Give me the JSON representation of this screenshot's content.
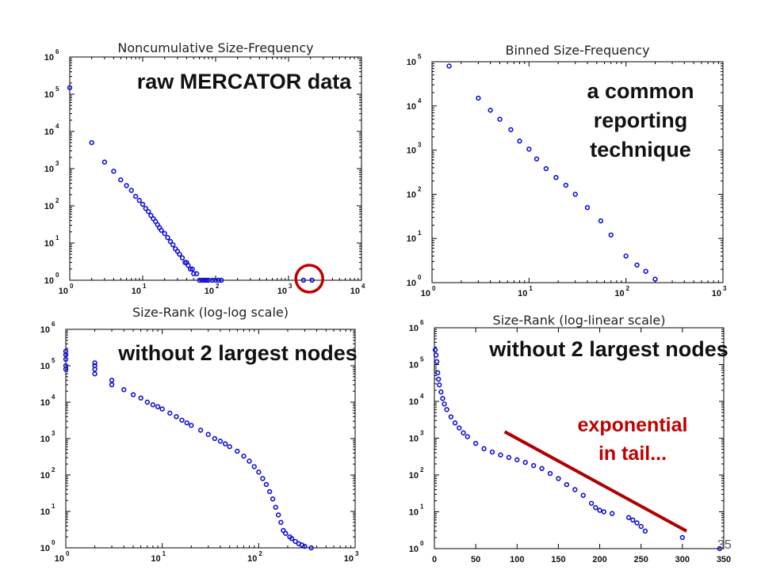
{
  "slide_number": "35",
  "colors": {
    "marker": "#1010d8",
    "trend_line": "#b00000",
    "highlight_circle": "#c00000",
    "annotation_red": "#c00000"
  },
  "chart_data": [
    {
      "id": "p1",
      "type": "scatter",
      "title": "Noncumulative Size-Frequency",
      "xscale": "log",
      "yscale": "log",
      "xlim": [
        1,
        10000
      ],
      "ylim": [
        1,
        1000000
      ],
      "xtick_exponents": [
        0,
        1,
        2,
        3,
        4
      ],
      "ytick_exponents": [
        0,
        1,
        2,
        3,
        4,
        5,
        6
      ],
      "annotation": "raw MERCATOR data",
      "highlight": "circle around the two isolated points near x = 2000",
      "points": [
        [
          1,
          150000
        ],
        [
          2,
          5000
        ],
        [
          3,
          1500
        ],
        [
          4,
          850
        ],
        [
          5,
          500
        ],
        [
          6,
          350
        ],
        [
          7,
          260
        ],
        [
          8,
          180
        ],
        [
          9,
          140
        ],
        [
          10,
          110
        ],
        [
          11,
          85
        ],
        [
          12,
          70
        ],
        [
          13,
          55
        ],
        [
          14,
          45
        ],
        [
          15,
          38
        ],
        [
          16,
          31
        ],
        [
          17,
          26
        ],
        [
          18,
          22
        ],
        [
          20,
          18
        ],
        [
          22,
          14
        ],
        [
          24,
          11
        ],
        [
          26,
          9
        ],
        [
          28,
          7
        ],
        [
          30,
          6
        ],
        [
          32,
          5
        ],
        [
          35,
          4
        ],
        [
          38,
          3
        ],
        [
          40,
          3
        ],
        [
          42,
          2.5
        ],
        [
          45,
          2
        ],
        [
          48,
          2
        ],
        [
          50,
          1.5
        ],
        [
          55,
          1.5
        ],
        [
          60,
          1
        ],
        [
          65,
          1
        ],
        [
          70,
          1
        ],
        [
          75,
          1
        ],
        [
          80,
          1
        ],
        [
          90,
          1
        ],
        [
          100,
          1
        ],
        [
          110,
          1
        ],
        [
          120,
          1
        ],
        [
          1600,
          1
        ],
        [
          2100,
          1
        ]
      ]
    },
    {
      "id": "p2",
      "type": "scatter",
      "title": "Binned Size-Frequency",
      "xscale": "log",
      "yscale": "log",
      "xlim": [
        1,
        1000
      ],
      "ylim": [
        1,
        100000
      ],
      "xtick_exponents": [
        0,
        1,
        2,
        3
      ],
      "ytick_exponents": [
        0,
        1,
        2,
        3,
        4,
        5
      ],
      "annotation": [
        "a common",
        "reporting",
        "technique"
      ],
      "points": [
        [
          1.5,
          80000
        ],
        [
          3,
          15000
        ],
        [
          4,
          8000
        ],
        [
          5,
          5000
        ],
        [
          6.5,
          2900
        ],
        [
          8,
          1600
        ],
        [
          10,
          1050
        ],
        [
          12,
          630
        ],
        [
          15,
          380
        ],
        [
          19,
          240
        ],
        [
          24,
          160
        ],
        [
          30,
          100
        ],
        [
          40,
          50
        ],
        [
          55,
          25
        ],
        [
          70,
          12
        ],
        [
          100,
          4
        ],
        [
          130,
          2.5
        ],
        [
          160,
          1.8
        ],
        [
          200,
          1.2
        ]
      ]
    },
    {
      "id": "p3",
      "type": "scatter",
      "title": "Size-Rank (log-log scale)",
      "xscale": "log",
      "yscale": "log",
      "xlim": [
        1,
        1000
      ],
      "ylim": [
        1,
        1000000
      ],
      "xtick_exponents": [
        0,
        1,
        2,
        3
      ],
      "ytick_exponents": [
        0,
        1,
        2,
        3,
        4,
        5,
        6
      ],
      "annotation": "without 2 largest nodes",
      "points": [
        [
          1,
          250000
        ],
        [
          1,
          200000
        ],
        [
          1,
          150000
        ],
        [
          1,
          100000
        ],
        [
          1,
          80000
        ],
        [
          2,
          120000
        ],
        [
          2,
          100000
        ],
        [
          2,
          80000
        ],
        [
          2,
          60000
        ],
        [
          3,
          40000
        ],
        [
          3,
          30000
        ],
        [
          4,
          22000
        ],
        [
          5,
          16000
        ],
        [
          6,
          13000
        ],
        [
          7,
          10000
        ],
        [
          8,
          8500
        ],
        [
          9,
          7500
        ],
        [
          10,
          6500
        ],
        [
          12,
          5000
        ],
        [
          14,
          4000
        ],
        [
          16,
          3200
        ],
        [
          18,
          2700
        ],
        [
          20,
          2300
        ],
        [
          25,
          1700
        ],
        [
          30,
          1300
        ],
        [
          35,
          1000
        ],
        [
          40,
          850
        ],
        [
          45,
          720
        ],
        [
          50,
          600
        ],
        [
          60,
          450
        ],
        [
          70,
          330
        ],
        [
          80,
          240
        ],
        [
          90,
          170
        ],
        [
          100,
          120
        ],
        [
          110,
          80
        ],
        [
          120,
          55
        ],
        [
          130,
          35
        ],
        [
          140,
          22
        ],
        [
          150,
          13
        ],
        [
          160,
          8
        ],
        [
          170,
          5
        ],
        [
          180,
          3
        ],
        [
          190,
          2.5
        ],
        [
          210,
          2
        ],
        [
          220,
          1.8
        ],
        [
          240,
          1.5
        ],
        [
          260,
          1.3
        ],
        [
          280,
          1.2
        ],
        [
          300,
          1.1
        ],
        [
          350,
          1
        ]
      ]
    },
    {
      "id": "p4",
      "type": "scatter",
      "title": "Size-Rank (log-linear scale)",
      "xscale": "linear",
      "yscale": "log",
      "xlim": [
        0,
        350
      ],
      "ylim": [
        1,
        1000000
      ],
      "xticks": [
        0,
        50,
        100,
        150,
        200,
        250,
        300,
        350
      ],
      "ytick_exponents": [
        0,
        1,
        2,
        3,
        4,
        5,
        6
      ],
      "annotation": "without 2 largest nodes",
      "tail_annotation": [
        "exponential",
        "in tail..."
      ],
      "trend_line": [
        [
          85,
          1500
        ],
        [
          305,
          3
        ]
      ],
      "points": [
        [
          1,
          250000
        ],
        [
          2,
          180000
        ],
        [
          3,
          120000
        ],
        [
          4,
          60000
        ],
        [
          5,
          40000
        ],
        [
          6,
          28000
        ],
        [
          8,
          18000
        ],
        [
          10,
          12000
        ],
        [
          12,
          8500
        ],
        [
          15,
          6000
        ],
        [
          20,
          3800
        ],
        [
          25,
          2600
        ],
        [
          30,
          1900
        ],
        [
          35,
          1400
        ],
        [
          40,
          1100
        ],
        [
          50,
          720
        ],
        [
          60,
          520
        ],
        [
          70,
          420
        ],
        [
          80,
          350
        ],
        [
          90,
          300
        ],
        [
          100,
          260
        ],
        [
          110,
          220
        ],
        [
          120,
          180
        ],
        [
          130,
          150
        ],
        [
          140,
          110
        ],
        [
          150,
          80
        ],
        [
          160,
          55
        ],
        [
          170,
          40
        ],
        [
          180,
          28
        ],
        [
          190,
          17
        ],
        [
          195,
          13
        ],
        [
          200,
          11
        ],
        [
          205,
          10
        ],
        [
          215,
          9
        ],
        [
          235,
          7
        ],
        [
          240,
          6
        ],
        [
          245,
          5
        ],
        [
          250,
          4
        ],
        [
          255,
          3
        ],
        [
          300,
          2
        ],
        [
          345,
          1
        ]
      ]
    }
  ]
}
